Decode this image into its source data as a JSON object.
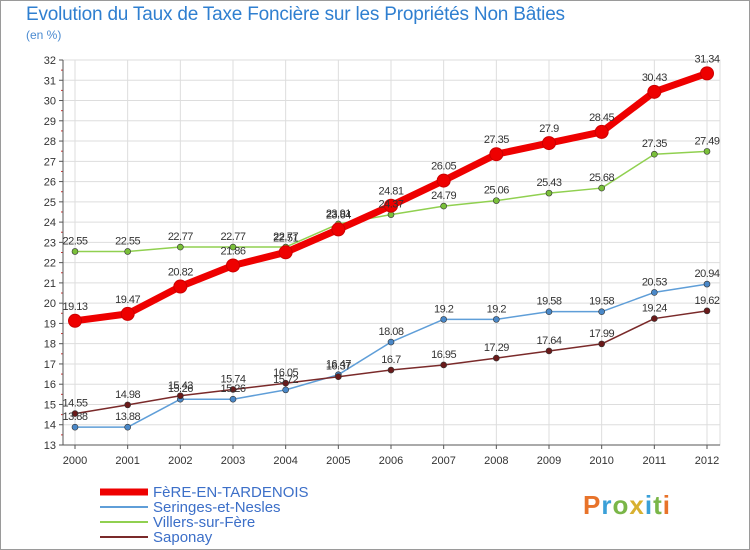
{
  "title": "Evolution du Taux de Taxe Foncière sur les Propriétés Non Bâties",
  "unit_label": "(en %)",
  "logo": {
    "text": "Proxiti",
    "colors": [
      "#e8732a",
      "#3aa0d8",
      "#7ab648",
      "#d8b030",
      "#3aa0d8",
      "#7ab648",
      "#e8732a"
    ]
  },
  "chart_data": {
    "type": "line",
    "title": "Evolution du Taux de Taxe Foncière sur les Propriétés Non Bâties",
    "ylabel": "(en %)",
    "xlabel": "",
    "x": [
      "2000",
      "2001",
      "2002",
      "2003",
      "2004",
      "2005",
      "2006",
      "2007",
      "2008",
      "2009",
      "2010",
      "2011",
      "2012"
    ],
    "ylim": [
      13,
      32
    ],
    "yticks": [
      "13",
      "14",
      "15",
      "16",
      "17",
      "18",
      "19",
      "20",
      "21",
      "22",
      "23",
      "24",
      "25",
      "26",
      "27",
      "28",
      "29",
      "30",
      "31",
      "32"
    ],
    "grid": true,
    "legend": "bottom-left",
    "series": [
      {
        "name": "FèRE-EN-TARDENOIS",
        "color": "#ee0000",
        "marker": "#dd0000",
        "values": [
          19.13,
          19.47,
          20.82,
          21.86,
          22.51,
          23.64,
          24.81,
          26.05,
          27.35,
          27.9,
          28.45,
          30.43,
          31.34
        ],
        "labels": [
          "19.13",
          "19.47",
          "20.82",
          "21.86",
          "22.51",
          "23.64",
          "24.81",
          "26.05",
          "27.35",
          "27.9",
          "28.45",
          "30.43",
          "31.34"
        ]
      },
      {
        "name": "Seringes-et-Nesles",
        "color": "#5f9ed8",
        "marker": "#4a88c8",
        "values": [
          13.88,
          13.88,
          15.26,
          15.26,
          15.72,
          16.47,
          18.08,
          19.2,
          19.2,
          19.58,
          19.58,
          20.53,
          20.94
        ],
        "labels": [
          "13.88",
          "13.88",
          "15.26",
          "15.26",
          "15.72",
          "16.47",
          "18.08",
          "19.2",
          "19.2",
          "19.58",
          "19.58",
          "20.53",
          "20.94"
        ]
      },
      {
        "name": "Villers-sur-Fère",
        "color": "#90d050",
        "marker": "#7ac03a",
        "values": [
          22.55,
          22.55,
          22.77,
          22.77,
          22.77,
          23.91,
          24.37,
          24.79,
          25.06,
          25.43,
          25.68,
          27.35,
          27.49
        ],
        "labels": [
          "22.55",
          "22.55",
          "22.77",
          "22.77",
          "22.77",
          "23.91",
          "24.37",
          "24.79",
          "25.06",
          "25.43",
          "25.68",
          "27.35",
          "27.49"
        ]
      },
      {
        "name": "Saponay",
        "color": "#7a2a2a",
        "marker": "#6a1a1a",
        "values": [
          14.55,
          14.98,
          15.43,
          15.74,
          16.05,
          16.37,
          16.7,
          16.95,
          17.29,
          17.64,
          17.99,
          19.24,
          19.62
        ],
        "labels": [
          "14.55",
          "14.98",
          "15.43",
          "15.74",
          "16.05",
          "16.37",
          "16.7",
          "16.95",
          "17.29",
          "17.64",
          "17.99",
          "19.24",
          "19.62"
        ]
      }
    ]
  }
}
